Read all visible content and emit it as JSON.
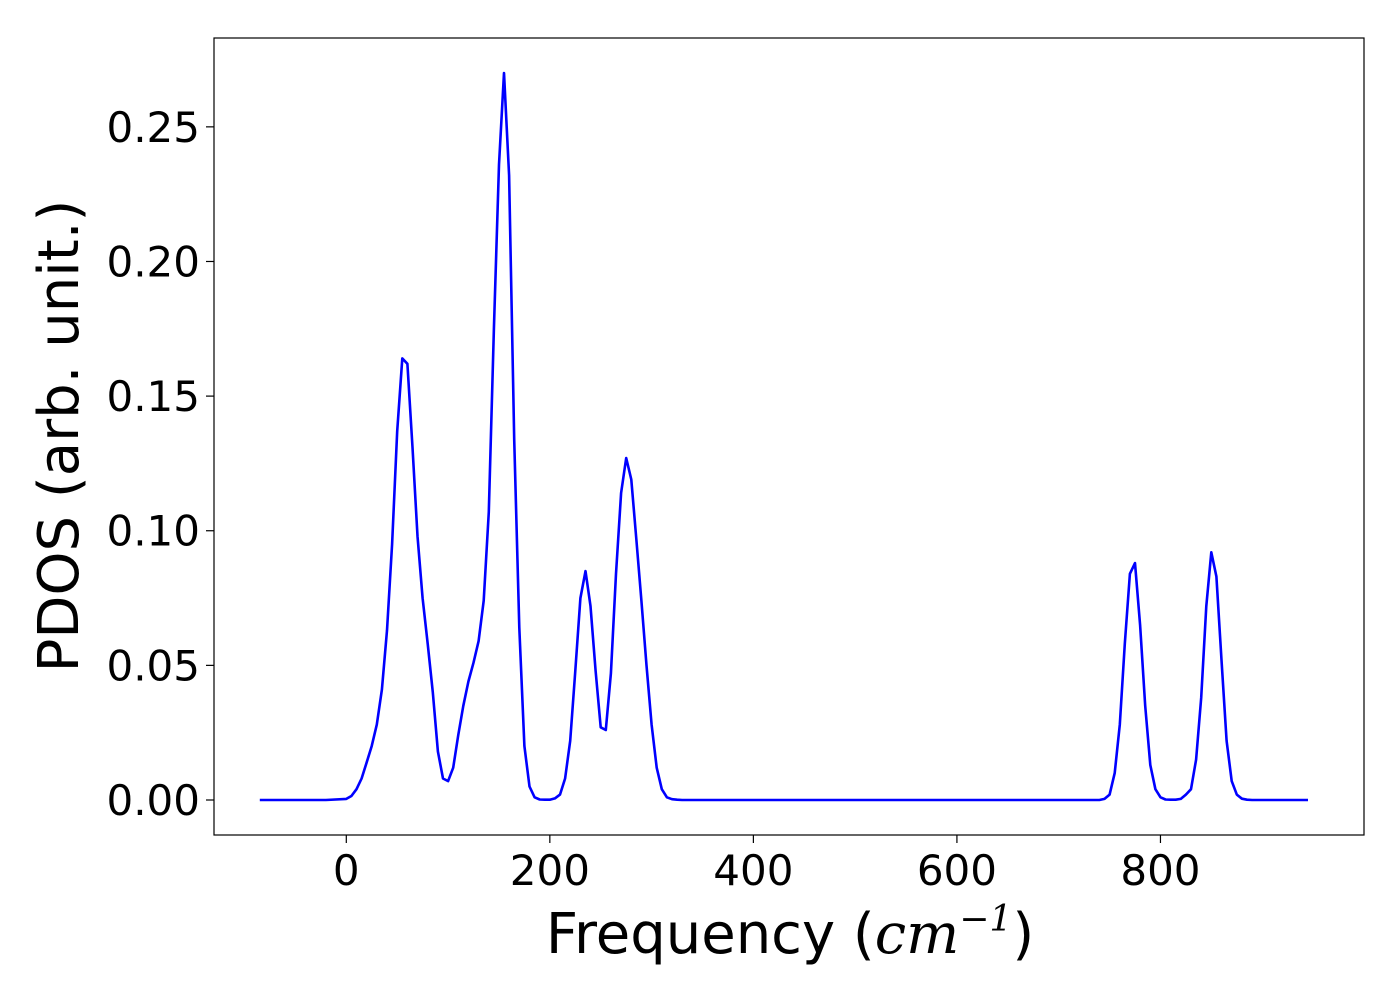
{
  "chart_data": {
    "type": "line",
    "title": "",
    "xlabel_main": "Frequency (",
    "xlabel_unit": "cm",
    "xlabel_exp": "−1",
    "xlabel_close": ")",
    "ylabel": "PDOS (arb. unit.)",
    "xlim": [
      -130,
      1000
    ],
    "ylim": [
      -0.013,
      0.283
    ],
    "xticks": [
      0,
      200,
      400,
      600,
      800
    ],
    "xtick_labels": [
      "0",
      "200",
      "400",
      "600",
      "800"
    ],
    "yticks": [
      0.0,
      0.05,
      0.1,
      0.15,
      0.2,
      0.25
    ],
    "ytick_labels": [
      "0.00",
      "0.05",
      "0.10",
      "0.15",
      "0.20",
      "0.25"
    ],
    "grid": false,
    "legend": "none",
    "series": [
      {
        "color": "#0000ff",
        "x": [
          -85,
          -20,
          0,
          5,
          10,
          15,
          20,
          25,
          30,
          35,
          40,
          45,
          50,
          55,
          60,
          65,
          70,
          75,
          80,
          85,
          90,
          95,
          100,
          105,
          110,
          115,
          120,
          125,
          130,
          135,
          140,
          145,
          150,
          155,
          160,
          165,
          170,
          175,
          180,
          185,
          190,
          195,
          200,
          205,
          210,
          215,
          220,
          225,
          230,
          235,
          240,
          245,
          250,
          255,
          260,
          265,
          270,
          275,
          280,
          285,
          290,
          295,
          300,
          305,
          310,
          315,
          320,
          325,
          330,
          335,
          740,
          745,
          750,
          755,
          760,
          765,
          770,
          775,
          780,
          785,
          790,
          795,
          800,
          805,
          810,
          815,
          820,
          825,
          830,
          835,
          840,
          845,
          850,
          855,
          860,
          865,
          870,
          875,
          880,
          885,
          890,
          895,
          945
        ],
        "y": [
          0.0,
          0.0,
          0.0004,
          0.0015,
          0.004,
          0.008,
          0.014,
          0.02,
          0.028,
          0.041,
          0.063,
          0.095,
          0.137,
          0.164,
          0.162,
          0.131,
          0.098,
          0.075,
          0.058,
          0.04,
          0.018,
          0.008,
          0.007,
          0.012,
          0.024,
          0.035,
          0.044,
          0.051,
          0.059,
          0.074,
          0.107,
          0.175,
          0.236,
          0.27,
          0.232,
          0.134,
          0.064,
          0.02,
          0.005,
          0.001,
          0.0002,
          0.0001,
          0.0001,
          0.0006,
          0.002,
          0.008,
          0.022,
          0.048,
          0.075,
          0.085,
          0.072,
          0.048,
          0.027,
          0.026,
          0.047,
          0.084,
          0.114,
          0.127,
          0.119,
          0.097,
          0.074,
          0.05,
          0.028,
          0.012,
          0.004,
          0.001,
          0.0003,
          0.0001,
          0.0,
          0.0,
          0.0,
          0.0004,
          0.002,
          0.01,
          0.028,
          0.058,
          0.084,
          0.088,
          0.065,
          0.035,
          0.013,
          0.004,
          0.001,
          0.0002,
          0.0001,
          0.0001,
          0.0004,
          0.002,
          0.004,
          0.015,
          0.038,
          0.072,
          0.092,
          0.083,
          0.052,
          0.022,
          0.007,
          0.002,
          0.0005,
          0.0001,
          0.0,
          0.0,
          0.0
        ]
      }
    ]
  }
}
